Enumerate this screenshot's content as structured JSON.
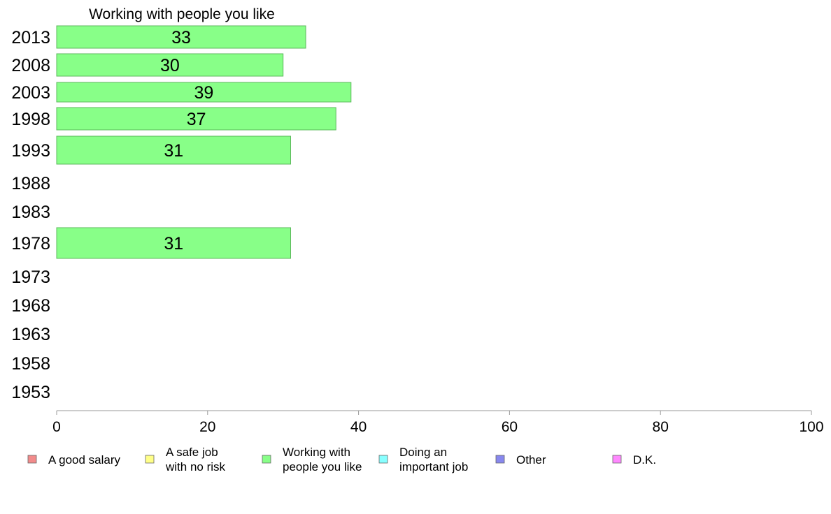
{
  "chart_data": {
    "type": "bar",
    "orientation": "horizontal",
    "title": "Working with people you like",
    "xlabel": "",
    "ylabel": "",
    "xlim": [
      0,
      100
    ],
    "x_ticks": [
      0,
      20,
      40,
      60,
      80,
      100
    ],
    "categories": [
      "2013",
      "2008",
      "2003",
      "1998",
      "1993",
      "1988",
      "1983",
      "1978",
      "1973",
      "1968",
      "1963",
      "1958",
      "1953"
    ],
    "series": [
      {
        "name": "Working with people you like",
        "color": "#88ff88",
        "edge_color": "#5cb85c",
        "values": [
          33,
          30,
          39,
          37,
          31,
          null,
          null,
          31,
          null,
          null,
          null,
          null,
          null
        ]
      }
    ],
    "grid": false,
    "legend": {
      "placement": "bottom",
      "items": [
        {
          "lines": [
            "A good salary"
          ],
          "color": "#f28b8b"
        },
        {
          "lines": [
            "A safe job",
            "with no risk"
          ],
          "color": "#ffff88"
        },
        {
          "lines": [
            "Working with",
            "people you like"
          ],
          "color": "#88ff88"
        },
        {
          "lines": [
            "Doing an",
            "important job"
          ],
          "color": "#88ffff"
        },
        {
          "lines": [
            "Other"
          ],
          "color": "#8888ee"
        },
        {
          "lines": [
            "D.K."
          ],
          "color": "#ff88ff"
        }
      ]
    }
  }
}
